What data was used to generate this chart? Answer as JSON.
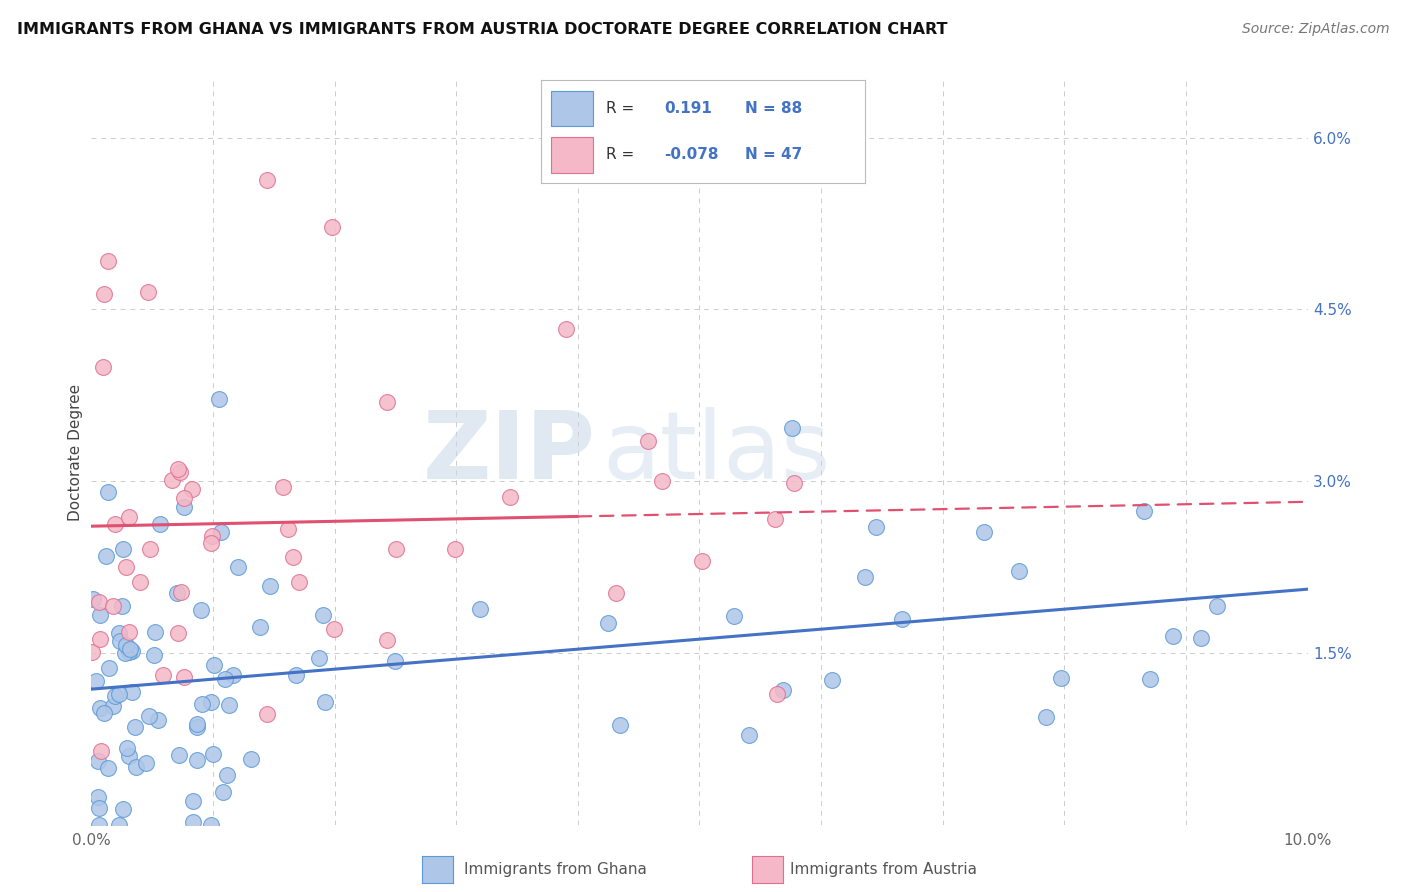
{
  "title": "IMMIGRANTS FROM GHANA VS IMMIGRANTS FROM AUSTRIA DOCTORATE DEGREE CORRELATION CHART",
  "source_text": "Source: ZipAtlas.com",
  "ylabel": "Doctorate Degree",
  "xlim": [
    0.0,
    0.1
  ],
  "ylim": [
    0.0,
    0.065
  ],
  "ghana_R": 0.191,
  "ghana_N": 88,
  "austria_R": -0.078,
  "austria_N": 47,
  "ghana_color": "#aec6e8",
  "ghana_edge_color": "#5b9bd5",
  "austria_color": "#f4b8c8",
  "austria_edge_color": "#e07090",
  "ghana_line_color": "#4472c4",
  "austria_line_color": "#e05070",
  "watermark_zip": "ZIP",
  "watermark_atlas": "atlas",
  "legend_R_color": "#4472c4",
  "legend_label_color": "#333333",
  "bottom_label_color": "#555555"
}
